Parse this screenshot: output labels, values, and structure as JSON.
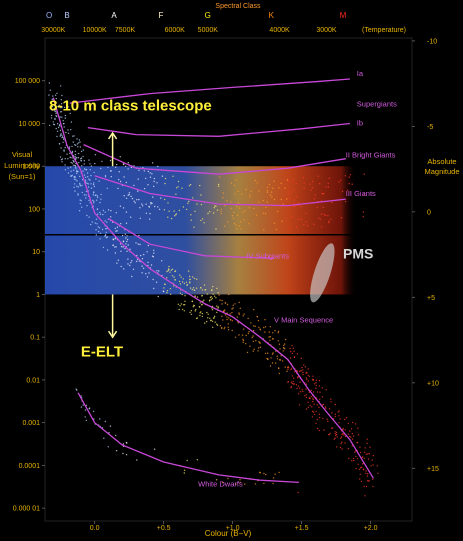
{
  "chart_data": {
    "type": "scatter",
    "title": "Spectral Class",
    "xlabel": "Colour (B−V)",
    "ylabel": "Visual Luminosity (Sun=1)",
    "y2label": "Absolute Magnitude",
    "toplabel": "(Temperature)",
    "x_log": false,
    "y_log": true,
    "xlim": [
      -0.36,
      2.3
    ],
    "ylim": [
      5e-06,
      1000000
    ],
    "x_ticks": [
      {
        "value": 0.0,
        "label": "0.0"
      },
      {
        "value": 0.5,
        "label": "+0.5"
      },
      {
        "value": 1.0,
        "label": "+1.0"
      },
      {
        "value": 1.5,
        "label": "+1.5"
      },
      {
        "value": 2.0,
        "label": "+2.0"
      }
    ],
    "y_ticks": [
      {
        "value": 100000,
        "label": "100 000"
      },
      {
        "value": 10000,
        "label": "10 000"
      },
      {
        "value": 1000,
        "label": "1 000"
      },
      {
        "value": 100,
        "label": "100"
      },
      {
        "value": 10,
        "label": "10"
      },
      {
        "value": 1,
        "label": "1"
      },
      {
        "value": 0.1,
        "label": "0.1"
      },
      {
        "value": 0.01,
        "label": "0.01"
      },
      {
        "value": 0.001,
        "label": "0.001"
      },
      {
        "value": 0.0001,
        "label": "0.0001"
      },
      {
        "value": 1e-05,
        "label": "0.000 01"
      }
    ],
    "mag_ticks": [
      {
        "value": -10,
        "label": "-10"
      },
      {
        "value": -5,
        "label": "-5"
      },
      {
        "value": 0,
        "label": "0"
      },
      {
        "value": 5,
        "label": "+5"
      },
      {
        "value": 10,
        "label": "+10"
      },
      {
        "value": 15,
        "label": "+15"
      }
    ],
    "temp_ticks": [
      {
        "label": "30000K",
        "bv": -0.3
      },
      {
        "label": "10000K",
        "bv": -0.0
      },
      {
        "label": "7500K",
        "bv": 0.22
      },
      {
        "label": "6000K",
        "bv": 0.58
      },
      {
        "label": "5000K",
        "bv": 0.82
      },
      {
        "label": "4000K",
        "bv": 1.34
      },
      {
        "label": "3000K",
        "bv": 1.68
      }
    ],
    "spectral_classes": [
      {
        "label": "O",
        "bv": -0.33,
        "color": "#9bb4ff"
      },
      {
        "label": "B",
        "bv": -0.2,
        "color": "#bfd0ff"
      },
      {
        "label": "A",
        "bv": 0.14,
        "color": "#ffffff"
      },
      {
        "label": "F",
        "bv": 0.48,
        "color": "#fff7c8"
      },
      {
        "label": "G",
        "bv": 0.82,
        "color": "#ffee00"
      },
      {
        "label": "K",
        "bv": 1.28,
        "color": "#ff8a00"
      },
      {
        "label": "M",
        "bv": 1.8,
        "color": "#ff2a1a"
      }
    ],
    "sequences": [
      {
        "name": "Ia",
        "label": "Ia",
        "label_at": [
          1.9,
          130000
        ],
        "points": [
          [
            -0.18,
            30000
          ],
          [
            0.4,
            50000
          ],
          [
            1.0,
            70000
          ],
          [
            1.6,
            95000
          ],
          [
            1.85,
            110000
          ]
        ]
      },
      {
        "name": "Supergiants",
        "label": "Supergiants",
        "label_at": [
          1.9,
          25000
        ],
        "points": []
      },
      {
        "name": "Ib",
        "label": "Ib",
        "label_at": [
          1.9,
          9000
        ],
        "points": [
          [
            -0.05,
            8000
          ],
          [
            0.3,
            5500
          ],
          [
            0.9,
            5000
          ],
          [
            1.5,
            7500
          ],
          [
            1.85,
            10000
          ]
        ]
      },
      {
        "name": "II Bright Giants",
        "label": "II Bright Giants",
        "label_at": [
          1.82,
          1600
        ],
        "points": [
          [
            -0.08,
            3200
          ],
          [
            0.3,
            900
          ],
          [
            0.9,
            650
          ],
          [
            1.4,
            900
          ],
          [
            1.82,
            1500
          ]
        ]
      },
      {
        "name": "III Giants",
        "label": "III    Giants",
        "label_at": [
          1.82,
          200
        ],
        "points": [
          [
            0.0,
            600
          ],
          [
            0.4,
            230
          ],
          [
            0.9,
            130
          ],
          [
            1.4,
            120
          ],
          [
            1.82,
            170
          ]
        ]
      },
      {
        "name": "IV Subgiants",
        "label": "IV Subgiants",
        "label_at": [
          1.1,
          7
        ],
        "points": [
          [
            0.1,
            60
          ],
          [
            0.4,
            15
          ],
          [
            0.8,
            8
          ],
          [
            1.3,
            7
          ]
        ]
      },
      {
        "name": "V Main Sequence",
        "label": "V Main Sequence",
        "label_at": [
          1.3,
          0.22
        ],
        "points": [
          [
            -0.3,
            40000
          ],
          [
            -0.2,
            3000
          ],
          [
            -0.1,
            800
          ],
          [
            0.0,
            80
          ],
          [
            0.2,
            15
          ],
          [
            0.4,
            4
          ],
          [
            0.6,
            1.5
          ],
          [
            0.8,
            0.6
          ],
          [
            1.0,
            0.3
          ],
          [
            1.2,
            0.1
          ],
          [
            1.4,
            0.03
          ],
          [
            1.55,
            0.006
          ],
          [
            1.7,
            0.0015
          ],
          [
            1.85,
            0.0004
          ],
          [
            2.02,
            5e-05
          ]
        ]
      },
      {
        "name": "White Dwarfs",
        "label": "White Dwarfs",
        "label_at": [
          0.75,
          3.2e-05
        ],
        "points": [
          [
            -0.12,
            0.005
          ],
          [
            0.0,
            0.001
          ],
          [
            0.2,
            0.0003
          ],
          [
            0.5,
            0.00012
          ],
          [
            0.9,
            6e-05
          ],
          [
            1.2,
            4.5e-05
          ],
          [
            1.48,
            4e-05
          ]
        ]
      }
    ],
    "density_band": {
      "ymin": 1,
      "ymax": 1000,
      "xmin": -0.36,
      "xmax": 1.9,
      "line_at": 25
    },
    "annotations": [
      {
        "text": "8-10 m class telescope",
        "at": [
          -0.33,
          20000
        ]
      },
      {
        "text": "E-ELT",
        "at": [
          -0.1,
          0.035
        ]
      },
      {
        "text": "PMS",
        "at": [
          1.8,
          7
        ]
      }
    ],
    "arrows": [
      {
        "from": [
          0.13,
          1000
        ],
        "to": [
          0.13,
          6000
        ]
      },
      {
        "from": [
          0.13,
          1
        ],
        "to": [
          0.13,
          0.1
        ]
      }
    ],
    "pms_ellipse": {
      "center": [
        1.65,
        3.2
      ]
    }
  }
}
